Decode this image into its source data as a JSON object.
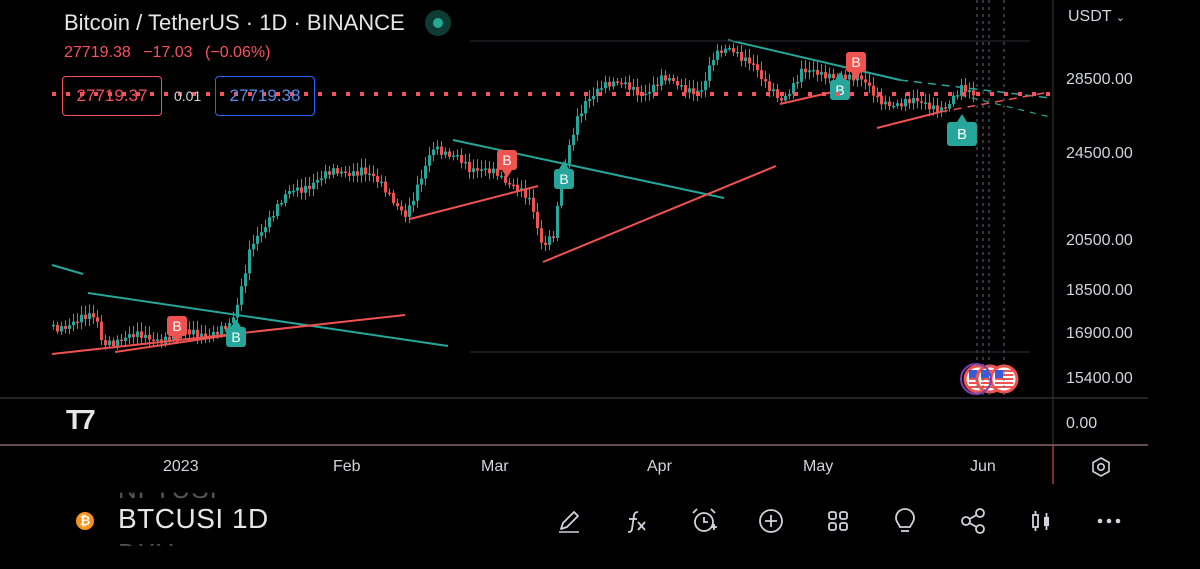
{
  "header": {
    "title": "Bitcoin / TetherUS · 1D · BINANCE",
    "last_price": "27719.38",
    "change": "−17.03",
    "change_pct": "(−0.06%)",
    "sell_price": "27719.37",
    "spread": "0.01",
    "buy_price": "27719.38"
  },
  "price_scale": {
    "currency": "USDT",
    "labels": [
      "28500.00",
      "24500.00",
      "20500.00",
      "18500.00",
      "16900.00",
      "15400.00"
    ],
    "indicator_label": "0.00"
  },
  "time_scale": {
    "labels": [
      "2023",
      "Feb",
      "Mar",
      "Apr",
      "May",
      "Jun"
    ]
  },
  "markers": {
    "buy": "B",
    "sell": "B"
  },
  "bottom_bar": {
    "symbol_prev": "NFTUSI",
    "symbol": "BTCUSI 1D",
    "symbol_next": "DXY",
    "coin_glyph": "₿"
  },
  "icons": {
    "logo": "tradingview-logo-icon",
    "settings": "settings-icon",
    "draw": "pencil-icon",
    "indicators": "fx-icon",
    "alert": "alarm-icon",
    "add": "plus-circle-icon",
    "layouts": "grid-icon",
    "ideas": "lightbulb-icon",
    "share": "share-icon",
    "chart_type": "candles-icon",
    "more": "more-icon"
  },
  "colors": {
    "up": "#26a69a",
    "down": "#ef5350",
    "price_line": "#f7525f",
    "accent_blue": "#2962ff"
  }
}
